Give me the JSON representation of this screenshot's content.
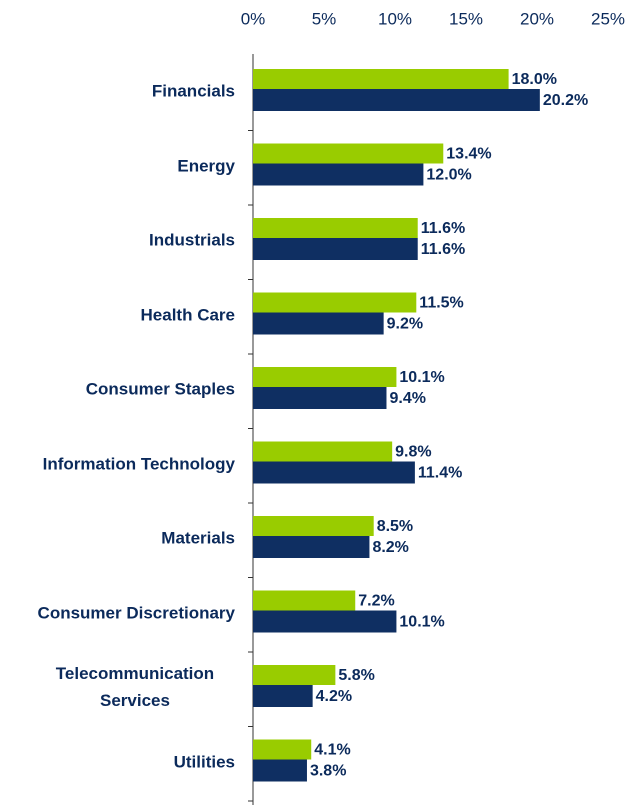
{
  "chart_data": {
    "type": "bar",
    "orientation": "horizontal",
    "categories": [
      "Financials",
      "Energy",
      "Industrials",
      "Health Care",
      "Consumer Staples",
      "Information Technology",
      "Materials",
      "Consumer Discretionary",
      "Telecommunication Services",
      "Utilities"
    ],
    "series": [
      {
        "color": "#99cc00",
        "values": [
          18.0,
          13.4,
          11.6,
          11.5,
          10.1,
          9.8,
          8.5,
          7.2,
          5.8,
          4.1
        ],
        "value_labels": [
          "18.0%",
          "13.4%",
          "11.6%",
          "11.5%",
          "10.1%",
          "9.8%",
          "8.5%",
          "7.2%",
          "5.8%",
          "4.1%"
        ]
      },
      {
        "color": "#0f2f62",
        "values": [
          20.2,
          12.0,
          11.6,
          9.2,
          9.4,
          11.4,
          8.2,
          10.1,
          4.2,
          3.8
        ],
        "value_labels": [
          "20.2%",
          "12.0%",
          "11.6%",
          "9.2%",
          "9.4%",
          "11.4%",
          "8.2%",
          "10.1%",
          "4.2%",
          "3.8%"
        ]
      }
    ],
    "xlim": [
      0,
      25
    ],
    "xticks": [
      {
        "value": 0,
        "label": "0%"
      },
      {
        "value": 5,
        "label": "5%"
      },
      {
        "value": 10,
        "label": "10%"
      },
      {
        "value": 15,
        "label": "15%"
      },
      {
        "value": 20,
        "label": "20%"
      },
      {
        "value": 25,
        "label": "25%"
      }
    ],
    "grid": false
  }
}
